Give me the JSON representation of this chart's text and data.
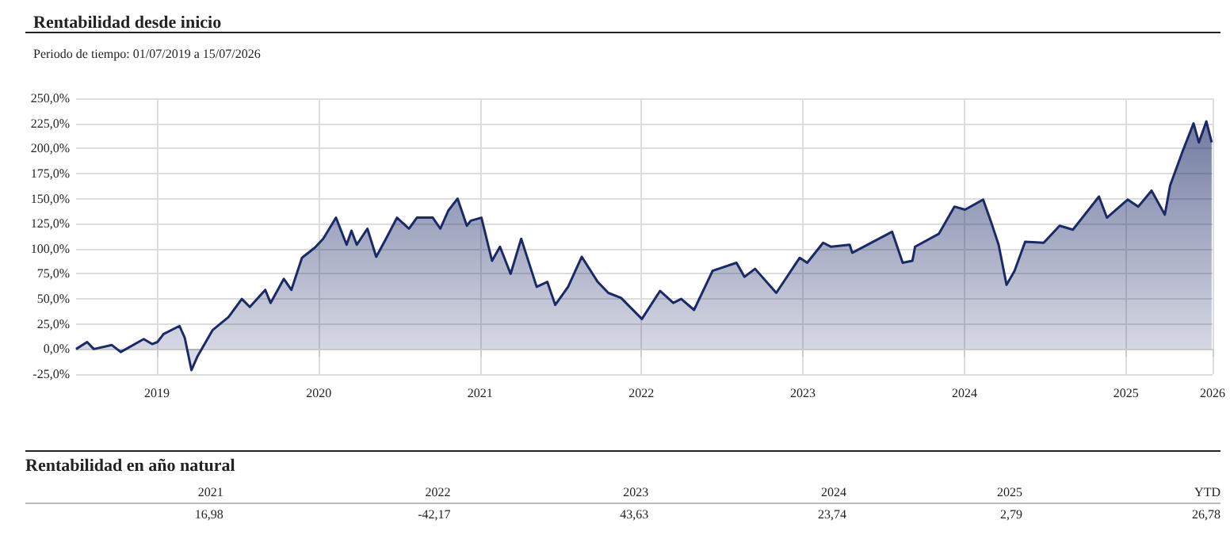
{
  "chart_data": [
    {
      "type": "area",
      "title": "Rentabilidad desde inicio",
      "subtitle": "Periodo de tiempo: 01/07/2019 a 15/07/2026",
      "x": [
        "2019-07-01",
        "2019-07-26",
        "2019-08-10",
        "2019-09-20",
        "2019-10-10",
        "2019-12-01",
        "2019-12-20",
        "2020-01-01",
        "2020-01-15",
        "2020-02-20",
        "2020-03-03",
        "2020-03-18",
        "2020-04-01",
        "2020-05-05",
        "2020-06-10",
        "2020-07-10",
        "2020-07-28",
        "2020-09-01",
        "2020-09-13",
        "2020-10-13",
        "2020-10-30",
        "2020-11-23",
        "2020-12-22",
        "2021-01-10",
        "2021-02-08",
        "2021-03-04",
        "2021-03-15",
        "2021-03-27",
        "2021-04-20",
        "2021-05-10",
        "2021-06-01",
        "2021-06-26",
        "2021-07-23",
        "2021-08-10",
        "2021-09-15",
        "2021-10-02",
        "2021-10-20",
        "2021-11-10",
        "2021-12-01",
        "2021-12-10",
        "2022-01-03",
        "2022-01-27",
        "2022-02-14",
        "2022-03-10",
        "2022-04-03",
        "2022-05-08",
        "2022-06-01",
        "2022-06-19",
        "2022-07-18",
        "2022-08-18",
        "2022-09-23",
        "2022-10-17",
        "2022-11-15",
        "2023-01-01",
        "2023-02-11",
        "2023-03-13",
        "2023-03-31",
        "2023-04-29",
        "2023-06-10",
        "2023-08-03",
        "2023-08-21",
        "2023-09-14",
        "2023-11-01",
        "2023-12-24",
        "2024-01-10",
        "2024-02-15",
        "2024-03-04",
        "2024-04-15",
        "2024-04-21",
        "2024-07-20",
        "2024-08-13",
        "2024-09-04",
        "2024-09-10",
        "2024-11-03",
        "2024-12-08",
        "2025-01-01",
        "2025-02-11",
        "2025-02-28",
        "2025-03-18",
        "2025-04-05",
        "2025-04-23",
        "2025-05-17",
        "2025-06-28",
        "2025-08-03",
        "2025-09-02",
        "2025-10-31",
        "2025-11-18",
        "2026-01-04",
        "2026-01-28",
        "2026-02-27",
        "2026-03-29",
        "2026-04-10",
        "2026-05-09",
        "2026-06-02",
        "2026-06-14",
        "2026-07-01",
        "2026-07-13"
      ],
      "series": [
        {
          "color": "#1b2a66",
          "values": [
            0,
            7,
            0,
            4,
            -3,
            10,
            5,
            7,
            15,
            23,
            11,
            -21,
            -7,
            19,
            32,
            50,
            42,
            59,
            46,
            70,
            59,
            91,
            101,
            110,
            131,
            104,
            118,
            104,
            120,
            92,
            110,
            131,
            120,
            131,
            131,
            120,
            138,
            150,
            123,
            128,
            131,
            88,
            102,
            75,
            110,
            62,
            67,
            44,
            62,
            92,
            67,
            56,
            51,
            30,
            58,
            46,
            50,
            39,
            78,
            86,
            72,
            80,
            56,
            91,
            86,
            106,
            102,
            104,
            96,
            117,
            86,
            88,
            102,
            115,
            142,
            139,
            149,
            128,
            104,
            64,
            78,
            107,
            106,
            123,
            119,
            152,
            131,
            149,
            142,
            158,
            134,
            163,
            198,
            225,
            206,
            227,
            206
          ]
        }
      ],
      "xlim": [
        "2019-07-01",
        "2026-07-15"
      ],
      "xticks": [
        {
          "value": "2019-12-31",
          "label": "2019"
        },
        {
          "value": "2020-12-31",
          "label": "2020"
        },
        {
          "value": "2021-12-31",
          "label": "2021"
        },
        {
          "value": "2022-12-31",
          "label": "2022"
        },
        {
          "value": "2023-12-31",
          "label": "2023"
        },
        {
          "value": "2024-12-31",
          "label": "2024"
        },
        {
          "value": "2025-12-31",
          "label": "2025"
        },
        {
          "value": "2026-07-15",
          "label": "2026"
        }
      ],
      "ylim": [
        -25,
        250
      ],
      "yticks": [
        {
          "value": -25,
          "label": "-25,0%"
        },
        {
          "value": 0,
          "label": "0,0%"
        },
        {
          "value": 25,
          "label": "25,0%"
        },
        {
          "value": 50,
          "label": "50,0%"
        },
        {
          "value": 75,
          "label": "75,0%"
        },
        {
          "value": 100,
          "label": "100,0%"
        },
        {
          "value": 125,
          "label": "125,0%"
        },
        {
          "value": 150,
          "label": "150,0%"
        },
        {
          "value": 175,
          "label": "175,0%"
        },
        {
          "value": 200,
          "label": "200,0%"
        },
        {
          "value": 225,
          "label": "225,0%"
        },
        {
          "value": 250,
          "label": "250,0%"
        }
      ],
      "grid": true
    },
    {
      "type": "other",
      "title": "Rentabilidad en año natural",
      "categories": [
        "2021",
        "2022",
        "2023",
        "2024",
        "2025",
        "YTD"
      ],
      "value_labels": [
        "16,98",
        "-42,17",
        "43,63",
        "23,74",
        "2,79",
        "26,78"
      ]
    }
  ]
}
